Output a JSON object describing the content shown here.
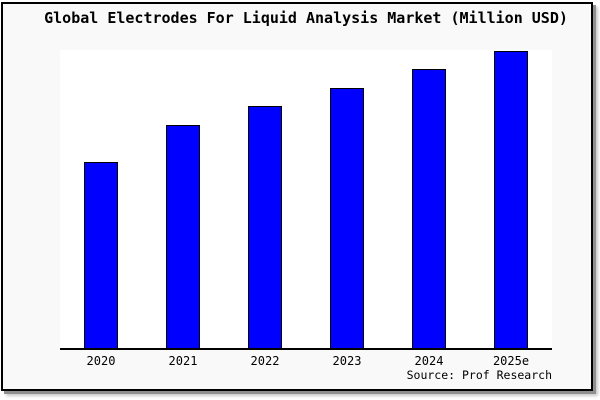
{
  "figure": {
    "background": "#f9f9f9",
    "border_color": "#000000",
    "shadow_color": "#8f8f8f"
  },
  "chart_data": {
    "type": "bar",
    "title": "Global Electrodes For Liquid Analysis Market (Million USD)",
    "unit": "Million USD",
    "categories": [
      "2020",
      "2021",
      "2022",
      "2023",
      "2024",
      "2025e"
    ],
    "values_pct_of_axis_height": [
      62.4,
      74.8,
      81.2,
      87.2,
      93.6,
      99.7
    ],
    "xlabel": "",
    "ylabel": "",
    "y_tick_labels_visible": false,
    "gridlines": false,
    "legend": "none",
    "source": "Source: Prof Research",
    "colors": {
      "bar_fill": "#0000ff",
      "bar_edge": "#000000",
      "plot_background": "#ffffff",
      "axis": "#000000",
      "text": "#000000"
    }
  }
}
